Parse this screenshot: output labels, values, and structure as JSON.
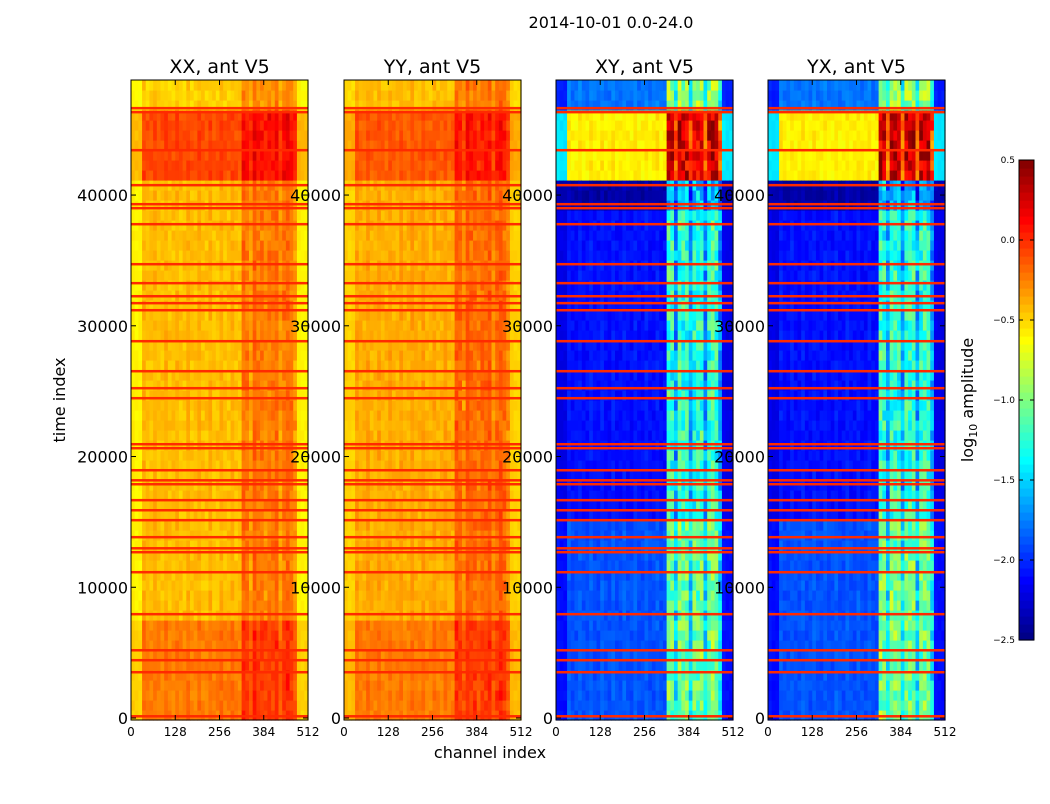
{
  "chart_data": {
    "type": "heatmap",
    "title": "2014-10-01 0.0-24.0",
    "xlabel": "channel index",
    "ylabel": "time index",
    "xlim": [
      0,
      512
    ],
    "ylim": [
      0,
      48800
    ],
    "xticks": [
      "0",
      "128",
      "256",
      "384",
      "512"
    ],
    "xtick_values": [
      0,
      128,
      256,
      384,
      512
    ],
    "yticks": [
      "0",
      "10000",
      "20000",
      "30000",
      "40000"
    ],
    "ytick_values": [
      0,
      10000,
      20000,
      30000,
      40000
    ],
    "colorbar": {
      "label": "log10 amplitude",
      "label_main": "log",
      "label_sub": "10",
      "label_rest": " amplitude",
      "range": [
        -2.5,
        0.5
      ],
      "ticks": [
        "0.5",
        "0.0",
        "−0.5",
        "−1.0",
        "−1.5",
        "−2.0",
        "−2.5"
      ],
      "tick_values": [
        0.5,
        0.0,
        -0.5,
        -1.0,
        -1.5,
        -2.0,
        -2.5
      ],
      "colormap": "jet"
    },
    "flagged_time_rows": [
      150,
      3520,
      4440,
      5200,
      7960,
      11170,
      12700,
      13000,
      13850,
      15150,
      15910,
      16680,
      17900,
      18200,
      18970,
      20655,
      20960,
      24480,
      25245,
      26545,
      28840,
      31210,
      31750,
      32280,
      33280,
      34730,
      37790,
      39015,
      39320,
      40775,
      43450,
      46360,
      46665
    ],
    "flagged_value": 0.0,
    "rfi_channel_range": [
      325,
      480
    ],
    "panels": [
      {
        "title": "XX, ant V5",
        "edge_value": -0.75,
        "rfi_boost": 0.25,
        "time_blocks": [
          {
            "from": 0,
            "to": 8000,
            "value": -0.25
          },
          {
            "from": 8000,
            "to": 41500,
            "value": -0.45
          },
          {
            "from": 41500,
            "to": 46700,
            "value": -0.1
          },
          {
            "from": 46700,
            "to": 48800,
            "value": -0.5
          }
        ]
      },
      {
        "title": "YY, ant V5",
        "edge_value": -0.6,
        "rfi_boost": 0.25,
        "time_blocks": [
          {
            "from": 0,
            "to": 8000,
            "value": -0.25
          },
          {
            "from": 8000,
            "to": 41500,
            "value": -0.4
          },
          {
            "from": 41500,
            "to": 46700,
            "value": -0.15
          },
          {
            "from": 46700,
            "to": 48800,
            "value": -0.45
          }
        ]
      },
      {
        "title": "XY, ant V5",
        "edge_value": -2.3,
        "rfi_boost": 1.0,
        "time_blocks": [
          {
            "from": 0,
            "to": 15000,
            "value": -1.9
          },
          {
            "from": 15000,
            "to": 39000,
            "value": -2.1
          },
          {
            "from": 39000,
            "to": 41500,
            "value": -2.4
          },
          {
            "from": 41500,
            "to": 46700,
            "value": -0.6
          },
          {
            "from": 46700,
            "to": 48800,
            "value": -1.8
          }
        ]
      },
      {
        "title": "YX, ant V5",
        "edge_value": -2.3,
        "rfi_boost": 1.0,
        "time_blocks": [
          {
            "from": 0,
            "to": 15000,
            "value": -1.9
          },
          {
            "from": 15000,
            "to": 39000,
            "value": -2.1
          },
          {
            "from": 39000,
            "to": 41500,
            "value": -2.4
          },
          {
            "from": 41500,
            "to": 46700,
            "value": -0.6
          },
          {
            "from": 46700,
            "to": 48800,
            "value": -1.8
          }
        ]
      }
    ]
  }
}
